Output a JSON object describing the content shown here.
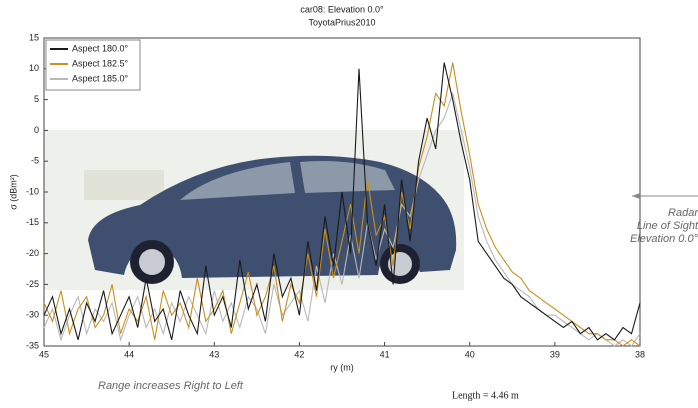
{
  "chart_data": {
    "type": "line",
    "title": "car08:  Elevation 0.0°",
    "subtitle": "ToyotaPrius2010",
    "x_label": "ry (m)",
    "y_label": "σ (dBm²)",
    "xlim": [
      45,
      38
    ],
    "ylim": [
      -35,
      15
    ],
    "xticks": [
      45,
      44,
      43,
      42,
      41,
      40,
      39,
      38
    ],
    "yticks": [
      15,
      10,
      5,
      0,
      -5,
      -10,
      -15,
      -20,
      -25,
      -30,
      -35
    ],
    "legend": "upper left",
    "x": [
      45.0,
      44.9,
      44.8,
      44.7,
      44.6,
      44.5,
      44.4,
      44.3,
      44.2,
      44.1,
      44.0,
      43.9,
      43.8,
      43.7,
      43.6,
      43.5,
      43.4,
      43.3,
      43.2,
      43.1,
      43.0,
      42.9,
      42.8,
      42.7,
      42.6,
      42.5,
      42.4,
      42.3,
      42.2,
      42.1,
      42.0,
      41.9,
      41.8,
      41.7,
      41.6,
      41.5,
      41.4,
      41.3,
      41.2,
      41.1,
      41.0,
      40.9,
      40.8,
      40.7,
      40.6,
      40.5,
      40.4,
      40.3,
      40.2,
      40.1,
      40.0,
      39.9,
      39.8,
      39.7,
      39.6,
      39.5,
      39.4,
      39.3,
      39.2,
      39.1,
      39.0,
      38.9,
      38.8,
      38.7,
      38.6,
      38.5,
      38.4,
      38.3,
      38.2,
      38.1,
      38.0
    ],
    "series": [
      {
        "name": "Aspect 180.0°",
        "color": "#1a1a1a",
        "values": [
          -30,
          -27,
          -33,
          -29,
          -34,
          -28,
          -31,
          -26,
          -33,
          -30,
          -27,
          -32,
          -24,
          -31,
          -29,
          -34,
          -26,
          -30,
          -33,
          -22,
          -30,
          -27,
          -32,
          -21,
          -29,
          -25,
          -31,
          -20,
          -27,
          -24,
          -30,
          -18,
          -26,
          -14,
          -22,
          -10,
          -20,
          10,
          -15,
          -22,
          -12,
          -25,
          -8,
          -18,
          -5,
          2,
          -3,
          11,
          5,
          -2,
          -8,
          -18,
          -20,
          -22,
          -24,
          -25,
          -27,
          -28,
          -29,
          -30,
          -31,
          -32,
          -31,
          -33,
          -32,
          -34,
          -33,
          -34,
          -32,
          -33,
          -28
        ]
      },
      {
        "name": "Aspect 182.5°",
        "color": "#c8901e",
        "values": [
          -28,
          -31,
          -26,
          -33,
          -29,
          -27,
          -32,
          -30,
          -25,
          -33,
          -29,
          -31,
          -27,
          -34,
          -26,
          -30,
          -28,
          -32,
          -24,
          -31,
          -29,
          -26,
          -33,
          -28,
          -23,
          -30,
          -27,
          -22,
          -31,
          -25,
          -28,
          -20,
          -27,
          -16,
          -24,
          -18,
          -12,
          -20,
          -8,
          -17,
          -14,
          -22,
          -10,
          -16,
          -6,
          -1,
          6,
          4,
          11,
          3,
          -4,
          -12,
          -16,
          -19,
          -21,
          -23,
          -24,
          -26,
          -27,
          -28,
          -29,
          -30,
          -31,
          -32,
          -33,
          -33,
          -34,
          -34,
          -35,
          -34,
          -35
        ]
      },
      {
        "name": "Aspect 185.0°",
        "color": "#b8b8b8",
        "values": [
          -32,
          -29,
          -34,
          -30,
          -27,
          -33,
          -29,
          -31,
          -28,
          -34,
          -30,
          -27,
          -32,
          -29,
          -33,
          -28,
          -31,
          -27,
          -30,
          -33,
          -26,
          -31,
          -28,
          -32,
          -27,
          -29,
          -33,
          -25,
          -30,
          -28,
          -26,
          -31,
          -22,
          -28,
          -20,
          -25,
          -17,
          -24,
          -15,
          -21,
          -16,
          -19,
          -12,
          -14,
          -8,
          -4,
          0,
          2,
          6,
          0,
          -6,
          -14,
          -18,
          -21,
          -23,
          -25,
          -26,
          -27,
          -29,
          -30,
          -30,
          -31,
          -32,
          -33,
          -34,
          -33,
          -34,
          -35,
          -34,
          -35,
          -33
        ]
      }
    ],
    "annotations": [
      "Radar",
      "Line of Sight",
      "Elevation 0.0°",
      "Range increases Right to Left",
      "Length = 4.46 m"
    ]
  }
}
